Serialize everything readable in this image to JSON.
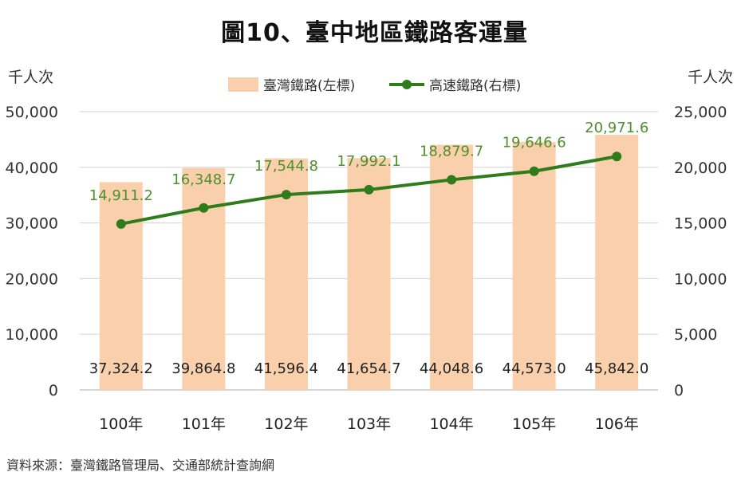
{
  "title": "圖10、臺中地區鐵路客運量",
  "source": "資料來源：臺灣鐵路管理局、交通部統計查詢網",
  "chart_data": {
    "type": "bar+line",
    "categories": [
      "100年",
      "101年",
      "102年",
      "103年",
      "104年",
      "105年",
      "106年"
    ],
    "series": [
      {
        "name": "臺灣鐵路(左標)",
        "type": "bar",
        "axis": "left",
        "color": "#f9d0ab",
        "values": [
          37324.2,
          39864.8,
          41596.4,
          41654.7,
          44048.6,
          44573.0,
          45842.0
        ],
        "labels": [
          "37,324.2",
          "39,864.8",
          "41,596.4",
          "41,654.7",
          "44,048.6",
          "44,573.0",
          "45,842.0"
        ]
      },
      {
        "name": "高速鐵路(右標)",
        "type": "line",
        "axis": "right",
        "color": "#2e7d1a",
        "label_color": "#4f8f2e",
        "values": [
          14911.2,
          16348.7,
          17544.8,
          17992.1,
          18879.7,
          19646.6,
          20971.6
        ],
        "labels": [
          "14,911.2",
          "16,348.7",
          "17,544.8",
          "17,992.1",
          "18,879.7",
          "19,646.6",
          "20,971.6"
        ]
      }
    ],
    "y_left": {
      "unit": "千人次",
      "ylim": [
        0,
        50000
      ],
      "ticks": [
        "0",
        "10,000",
        "20,000",
        "30,000",
        "40,000",
        "50,000"
      ]
    },
    "y_right": {
      "unit": "千人次",
      "ylim": [
        0,
        25000
      ],
      "ticks": [
        "0",
        "5,000",
        "10,000",
        "15,000",
        "20,000",
        "25,000"
      ]
    },
    "grid": true,
    "legend_position": "top-center"
  }
}
